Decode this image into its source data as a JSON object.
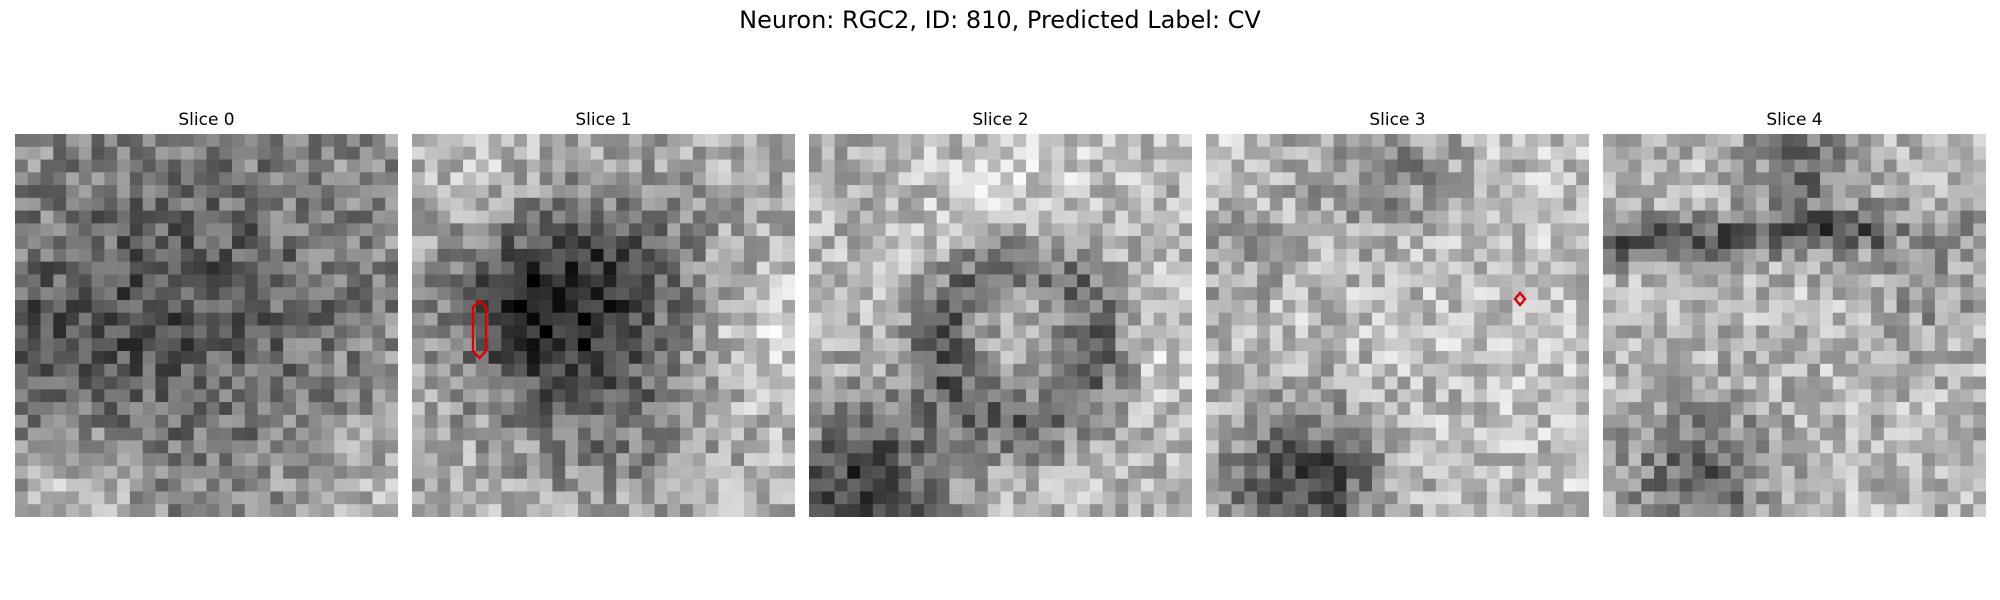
{
  "figure": {
    "title": "Neuron: RGC2, ID: 810, Predicted Label: CV"
  },
  "panels": [
    {
      "title": "Slice 0",
      "seed": 11,
      "pattern": "ring-faint",
      "annotation": null
    },
    {
      "title": "Slice 1",
      "seed": 23,
      "pattern": "dark-blob-upper",
      "annotation": {
        "shape": "elongated-hexagon",
        "color": "#e00000"
      }
    },
    {
      "title": "Slice 2",
      "seed": 37,
      "pattern": "dark-ring-bottom-left",
      "annotation": null
    },
    {
      "title": "Slice 3",
      "seed": 41,
      "pattern": "light-with-dark-corner",
      "annotation": {
        "shape": "small-diamond",
        "color": "#e00000"
      }
    },
    {
      "title": "Slice 4",
      "seed": 53,
      "pattern": "bands",
      "annotation": null
    }
  ],
  "style": {
    "annotation_color": "#e00000",
    "colormap": "grayscale"
  }
}
